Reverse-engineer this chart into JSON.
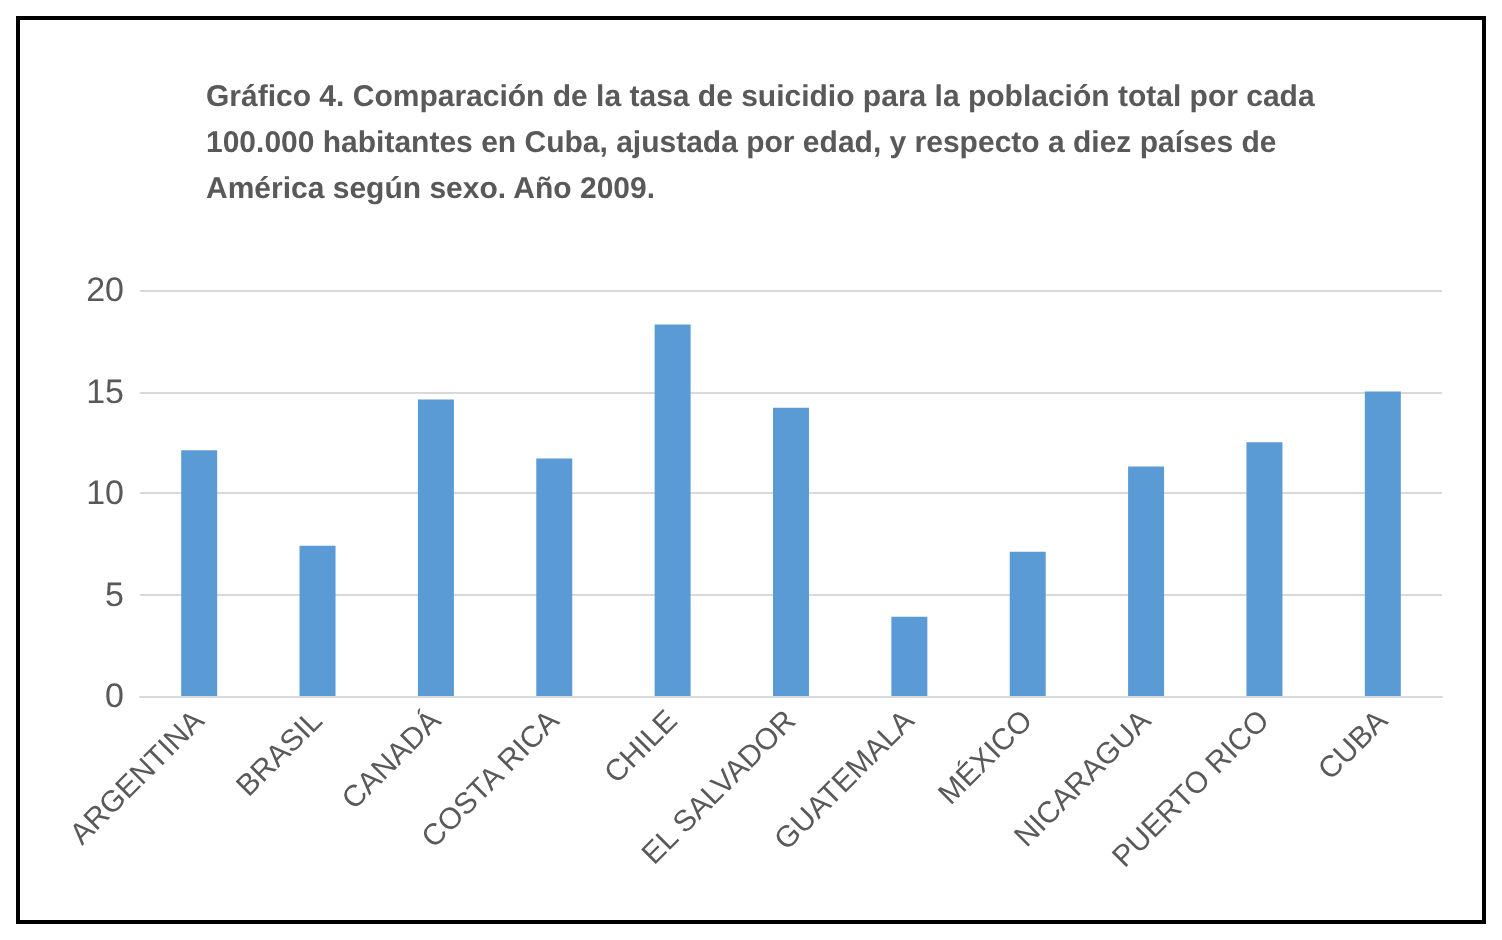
{
  "chart_data": {
    "type": "bar",
    "title": "Gráfico 4. Comparación de la tasa de suicidio para la población total por cada 100.000 habitantes en Cuba, ajustada por edad, y respecto a diez países de América según sexo. Año 2009.",
    "categories": [
      "ARGENTINA",
      "BRASIL",
      "CANADÁ",
      "COSTA RICA",
      "CHILE",
      "EL SALVADOR",
      "GUATEMALA",
      "MÉXICO",
      "NICARAGUA",
      "PUERTO RICO",
      "CUBA"
    ],
    "values": [
      12.1,
      7.4,
      14.6,
      11.7,
      18.3,
      14.2,
      3.9,
      7.1,
      11.3,
      12.5,
      15.0
    ],
    "color": "#5b9bd5",
    "ylim": [
      0,
      20
    ],
    "yticks": [
      0,
      5,
      10,
      15,
      20
    ],
    "grid": "y"
  }
}
